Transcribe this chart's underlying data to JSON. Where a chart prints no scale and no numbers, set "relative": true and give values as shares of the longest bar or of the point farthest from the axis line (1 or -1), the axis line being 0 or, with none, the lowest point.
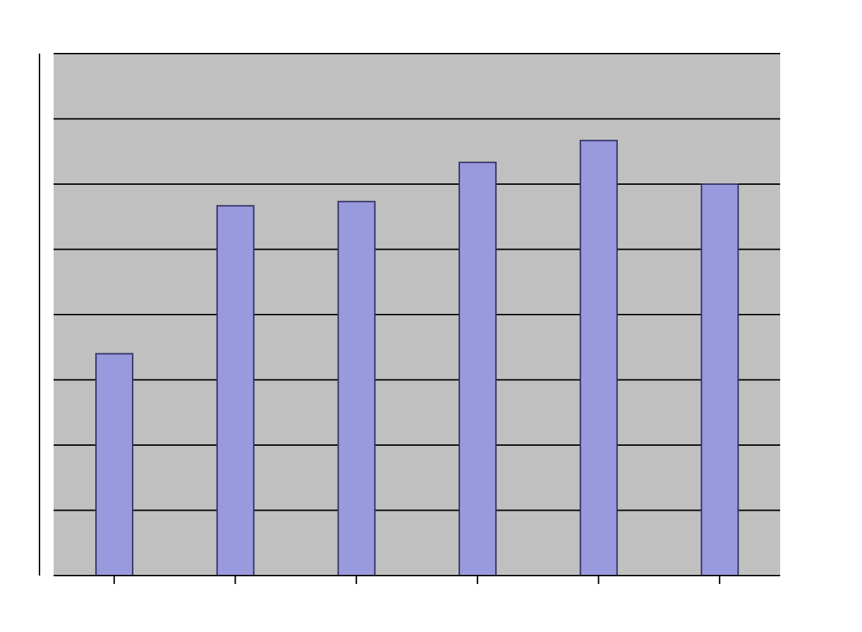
{
  "chart_data": {
    "type": "bar",
    "relative": true,
    "categories": [
      null,
      null,
      null,
      null,
      null,
      null
    ],
    "values": [
      0.51,
      0.85,
      0.86,
      0.95,
      1,
      0.9
    ],
    "color": "#9999dd",
    "grid": "y"
  }
}
